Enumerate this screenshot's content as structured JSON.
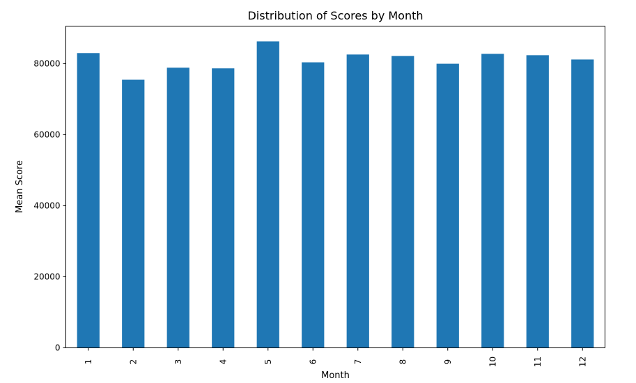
{
  "chart_data": {
    "type": "bar",
    "title": "Distribution of Scores by Month",
    "xlabel": "Month",
    "ylabel": "Mean Score",
    "categories": [
      "1",
      "2",
      "3",
      "4",
      "5",
      "6",
      "7",
      "8",
      "9",
      "10",
      "11",
      "12"
    ],
    "values": [
      83000,
      75500,
      78900,
      78700,
      86300,
      80400,
      82600,
      82200,
      80000,
      82800,
      82400,
      81200
    ],
    "ylim": [
      0,
      90600
    ],
    "yticks": [
      0,
      20000,
      40000,
      60000,
      80000
    ],
    "ytick_labels": [
      "0",
      "20000",
      "40000",
      "60000",
      "80000"
    ],
    "xtick_rotation": "vertical",
    "bar_color": "#1f77b4",
    "grid": false,
    "legend": "none"
  }
}
